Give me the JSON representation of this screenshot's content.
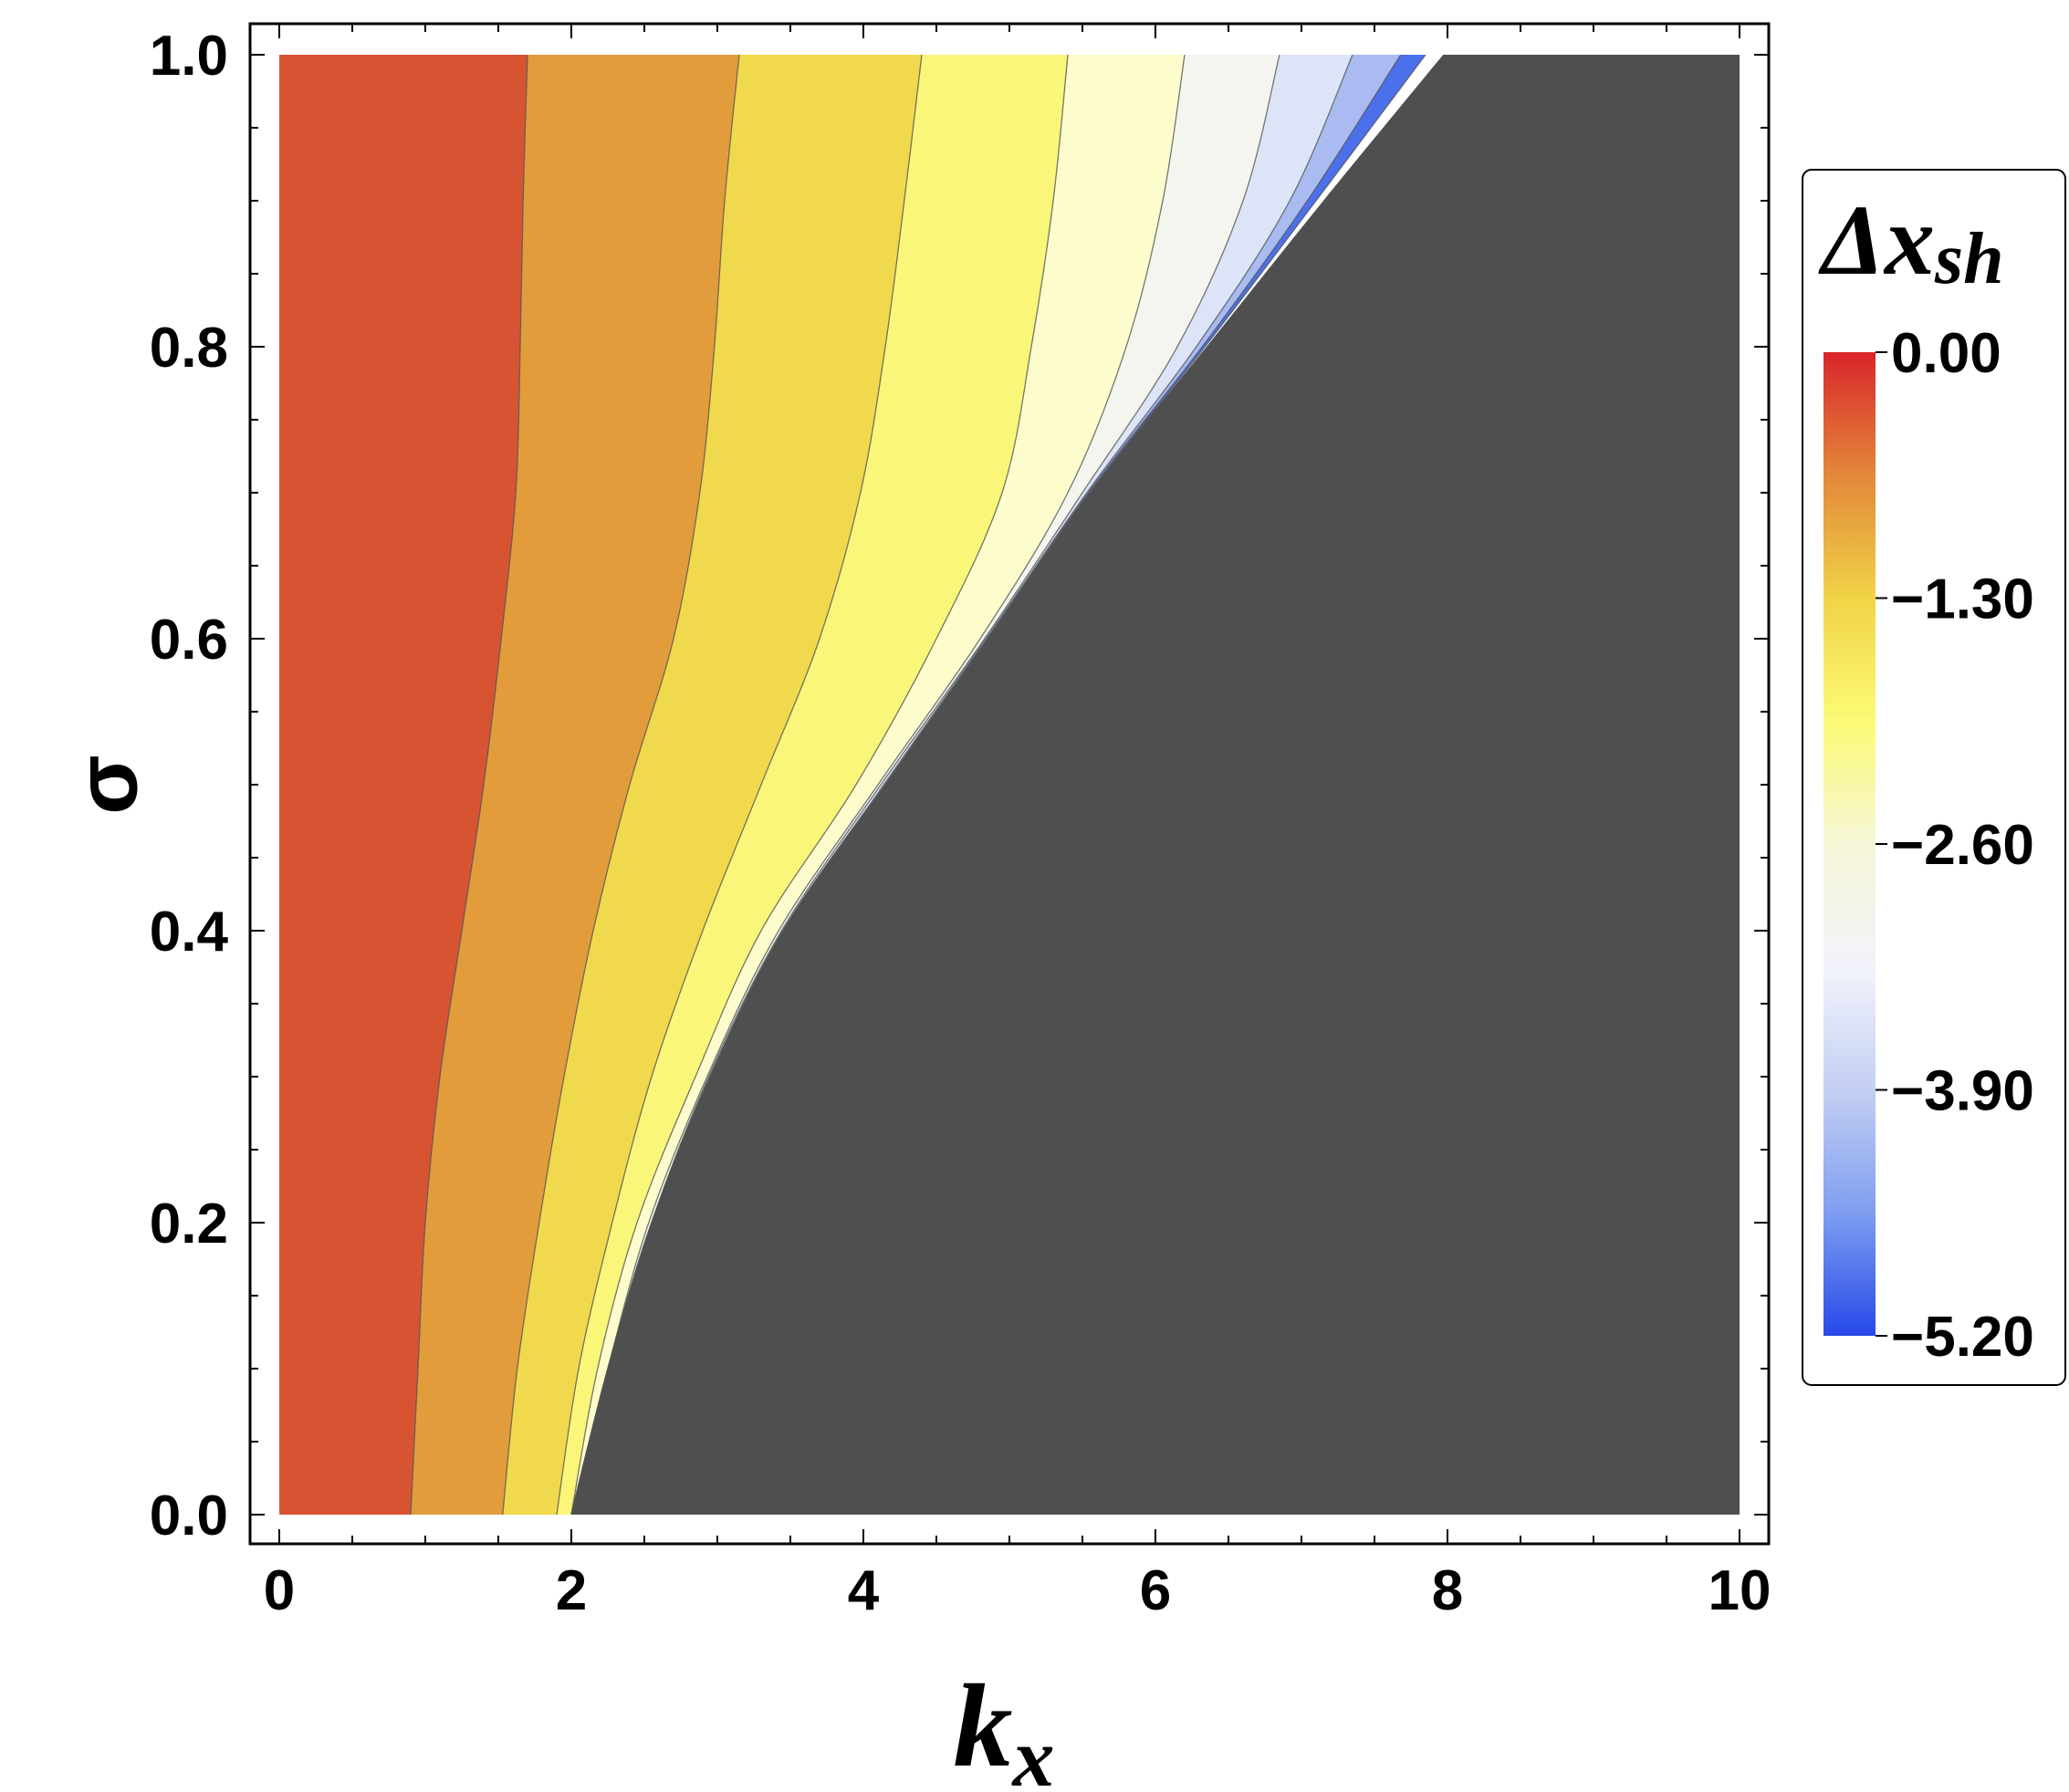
{
  "chart_data": {
    "type": "contour",
    "title": "",
    "xlabel": {
      "main": "k",
      "sub": "x"
    },
    "ylabel": "σ",
    "xlim": [
      0,
      10
    ],
    "ylim": [
      0,
      1
    ],
    "x_ticks": [
      0,
      2,
      4,
      6,
      8,
      10
    ],
    "x_tick_labels": [
      "0",
      "2",
      "4",
      "6",
      "8",
      "10"
    ],
    "y_ticks": [
      0.0,
      0.2,
      0.4,
      0.6,
      0.8,
      1.0
    ],
    "y_tick_labels": [
      "0.0",
      "0.2",
      "0.4",
      "0.6",
      "0.8",
      "1.0"
    ],
    "grid": false,
    "legend": {
      "title_main": "Δx",
      "title_sub": "sh",
      "placement": "right",
      "range": [
        -5.2,
        0
      ],
      "ticks": [
        0.0,
        -1.3,
        -2.6,
        -3.9,
        -5.2
      ],
      "tick_labels": [
        "0.00",
        "−1.30",
        "−2.60",
        "−3.90",
        "−5.20"
      ],
      "gradient_colors": [
        "#d9252b",
        "#e2883a",
        "#f1d347",
        "#fbfb75",
        "#f6f6d8",
        "#f2f3fb",
        "#c4cff3",
        "#7f9ef0",
        "#2649e9"
      ]
    },
    "undefined_region_color": "#4f4f4f",
    "boundary_x": {
      "sigma": [
        0.0,
        0.1,
        0.2,
        0.3,
        0.4,
        0.5,
        0.6,
        0.7,
        0.8,
        0.9,
        1.0
      ],
      "kx": [
        2.0,
        2.25,
        2.55,
        2.95,
        3.45,
        4.15,
        4.85,
        5.55,
        6.35,
        7.15,
        7.97
      ]
    },
    "bands": [
      {
        "level": -0.25,
        "color": "#d75433",
        "right_boundary_x": [
          0.9,
          0.95,
          1.0,
          1.1,
          1.25,
          1.4,
          1.52,
          1.62,
          1.65,
          1.67,
          1.7
        ]
      },
      {
        "level": -0.8,
        "color": "#e29c3b",
        "right_boundary_x": [
          1.53,
          1.63,
          1.78,
          1.95,
          2.15,
          2.4,
          2.7,
          2.88,
          2.98,
          3.05,
          3.15
        ]
      },
      {
        "level": -1.2,
        "color": "#f0d94c",
        "right_boundary_x": [
          1.9,
          2.05,
          2.28,
          2.55,
          2.9,
          3.3,
          3.7,
          3.98,
          4.15,
          4.28,
          4.4
        ]
      },
      {
        "level": -1.6,
        "color": "#f9f67a",
        "right_boundary_x": [
          2.0,
          2.18,
          2.45,
          2.85,
          3.3,
          3.95,
          4.5,
          4.95,
          5.15,
          5.3,
          5.4
        ]
      },
      {
        "level": -2.2,
        "color": "#fcfccd",
        "right_boundary_x": [
          2.0,
          2.25,
          2.53,
          2.93,
          3.42,
          4.1,
          4.8,
          5.4,
          5.8,
          6.05,
          6.2
        ]
      },
      {
        "level": -2.8,
        "color": "#f3f5ee",
        "right_boundary_x": [
          2.0,
          2.25,
          2.55,
          2.94,
          3.44,
          4.12,
          4.83,
          5.5,
          6.15,
          6.6,
          6.85
        ]
      },
      {
        "level": -3.5,
        "color": "#dde4f7",
        "right_boundary_x": [
          2.0,
          2.25,
          2.55,
          2.95,
          3.45,
          4.14,
          4.84,
          5.53,
          6.28,
          6.92,
          7.35
        ]
      },
      {
        "level": -4.2,
        "color": "#a9bbf1",
        "right_boundary_x": [
          2.0,
          2.25,
          2.55,
          2.95,
          3.45,
          4.15,
          4.85,
          5.54,
          6.32,
          7.04,
          7.68
        ]
      },
      {
        "level": -5.0,
        "color": "#4c70ec",
        "right_boundary_x": [
          2.0,
          2.25,
          2.55,
          2.95,
          3.45,
          4.15,
          4.85,
          5.55,
          6.34,
          7.1,
          7.85
        ]
      }
    ]
  }
}
